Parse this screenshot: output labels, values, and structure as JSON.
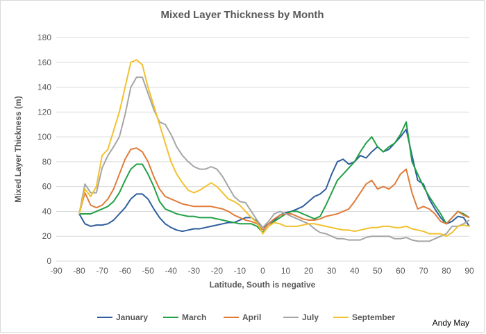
{
  "chart_data": {
    "type": "line",
    "title": "Mixed Layer Thickness by Month",
    "xlabel": "Latitude, South is negative",
    "ylabel": "Mixed Layer Thickness (m)",
    "xlim": [
      -90,
      90
    ],
    "ylim": [
      0,
      180
    ],
    "xticks": [
      -90,
      -80,
      -70,
      -60,
      -50,
      -40,
      -30,
      -20,
      -10,
      0,
      10,
      20,
      30,
      40,
      50,
      60,
      70,
      80,
      90
    ],
    "yticks": [
      0,
      20,
      40,
      60,
      80,
      100,
      120,
      140,
      160,
      180
    ],
    "grid": "horizontal",
    "legend_position": "bottom",
    "credit": "Andy May",
    "x": [
      -80,
      -77.5,
      -75,
      -72.5,
      -70,
      -67.5,
      -65,
      -62.5,
      -60,
      -57.5,
      -55,
      -52.5,
      -50,
      -47.5,
      -45,
      -42.5,
      -40,
      -37.5,
      -35,
      -32.5,
      -30,
      -27.5,
      -25,
      -22.5,
      -20,
      -17.5,
      -15,
      -12.5,
      -10,
      -7.5,
      -5,
      -2.5,
      0,
      2.5,
      5,
      7.5,
      10,
      12.5,
      15,
      17.5,
      20,
      22.5,
      25,
      27.5,
      30,
      32.5,
      35,
      37.5,
      40,
      42.5,
      45,
      47.5,
      50,
      52.5,
      55,
      57.5,
      60,
      62.5,
      65,
      67.5,
      70,
      72.5,
      75,
      77.5,
      80,
      82.5,
      85,
      87.5,
      90
    ],
    "series": [
      {
        "name": "January",
        "color": "#2e5e9e",
        "values": [
          38,
          30,
          28,
          29,
          29,
          30,
          33,
          38,
          43,
          50,
          54,
          54,
          50,
          42,
          35,
          30,
          27,
          25,
          24,
          25,
          26,
          26,
          27,
          28,
          29,
          30,
          31,
          31,
          33,
          35,
          35,
          32,
          27,
          30,
          33,
          37,
          39,
          40,
          42,
          44,
          48,
          52,
          54,
          58,
          70,
          80,
          82,
          78,
          80,
          85,
          83,
          88,
          92,
          88,
          90,
          95,
          100,
          106,
          85,
          65,
          62,
          50,
          42,
          35,
          30,
          32,
          36,
          35,
          28
        ]
      },
      {
        "name": "March",
        "color": "#21a045",
        "values": [
          38,
          38,
          38,
          40,
          42,
          44,
          48,
          55,
          65,
          74,
          78,
          78,
          70,
          60,
          48,
          42,
          40,
          38,
          37,
          36,
          36,
          35,
          35,
          35,
          34,
          33,
          32,
          31,
          30,
          30,
          30,
          28,
          23,
          28,
          32,
          35,
          38,
          40,
          40,
          38,
          36,
          34,
          36,
          45,
          55,
          65,
          70,
          75,
          80,
          88,
          95,
          100,
          92,
          88,
          92,
          95,
          102,
          112,
          80,
          70,
          60,
          52,
          45,
          38,
          30,
          35,
          40,
          38,
          35
        ]
      },
      {
        "name": "April",
        "color": "#e07b39",
        "values": [
          38,
          55,
          45,
          43,
          45,
          50,
          58,
          70,
          82,
          90,
          91,
          88,
          80,
          68,
          58,
          52,
          50,
          48,
          46,
          45,
          44,
          44,
          44,
          44,
          43,
          42,
          40,
          37,
          35,
          33,
          32,
          30,
          25,
          30,
          34,
          37,
          38,
          38,
          36,
          34,
          33,
          33,
          34,
          36,
          37,
          38,
          40,
          42,
          48,
          55,
          62,
          65,
          58,
          60,
          58,
          62,
          70,
          74,
          55,
          42,
          44,
          42,
          38,
          32,
          30,
          35,
          40,
          37,
          35
        ]
      },
      {
        "name": "July",
        "color": "#a5a5a5",
        "values": [
          38,
          62,
          55,
          55,
          75,
          85,
          92,
          100,
          118,
          140,
          148,
          148,
          135,
          122,
          112,
          110,
          102,
          92,
          85,
          80,
          76,
          74,
          74,
          76,
          74,
          68,
          60,
          52,
          48,
          47,
          40,
          33,
          27,
          32,
          38,
          40,
          38,
          36,
          34,
          32,
          30,
          26,
          23,
          22,
          20,
          18,
          18,
          17,
          17,
          17,
          19,
          20,
          20,
          20,
          20,
          18,
          18,
          19,
          17,
          16,
          16,
          16,
          18,
          20,
          22,
          28,
          28,
          30,
          33
        ]
      },
      {
        "name": "September",
        "color": "#f2c12e",
        "values": [
          38,
          58,
          52,
          60,
          85,
          90,
          105,
          120,
          140,
          160,
          162,
          158,
          140,
          125,
          110,
          95,
          80,
          70,
          63,
          57,
          55,
          57,
          60,
          63,
          60,
          55,
          50,
          48,
          45,
          40,
          35,
          31,
          22,
          28,
          31,
          30,
          28,
          28,
          28,
          29,
          30,
          30,
          29,
          28,
          27,
          26,
          25,
          25,
          24,
          25,
          26,
          27,
          27,
          28,
          28,
          27,
          27,
          28,
          26,
          25,
          24,
          22,
          22,
          22,
          20,
          23,
          28,
          29,
          28
        ]
      }
    ]
  }
}
